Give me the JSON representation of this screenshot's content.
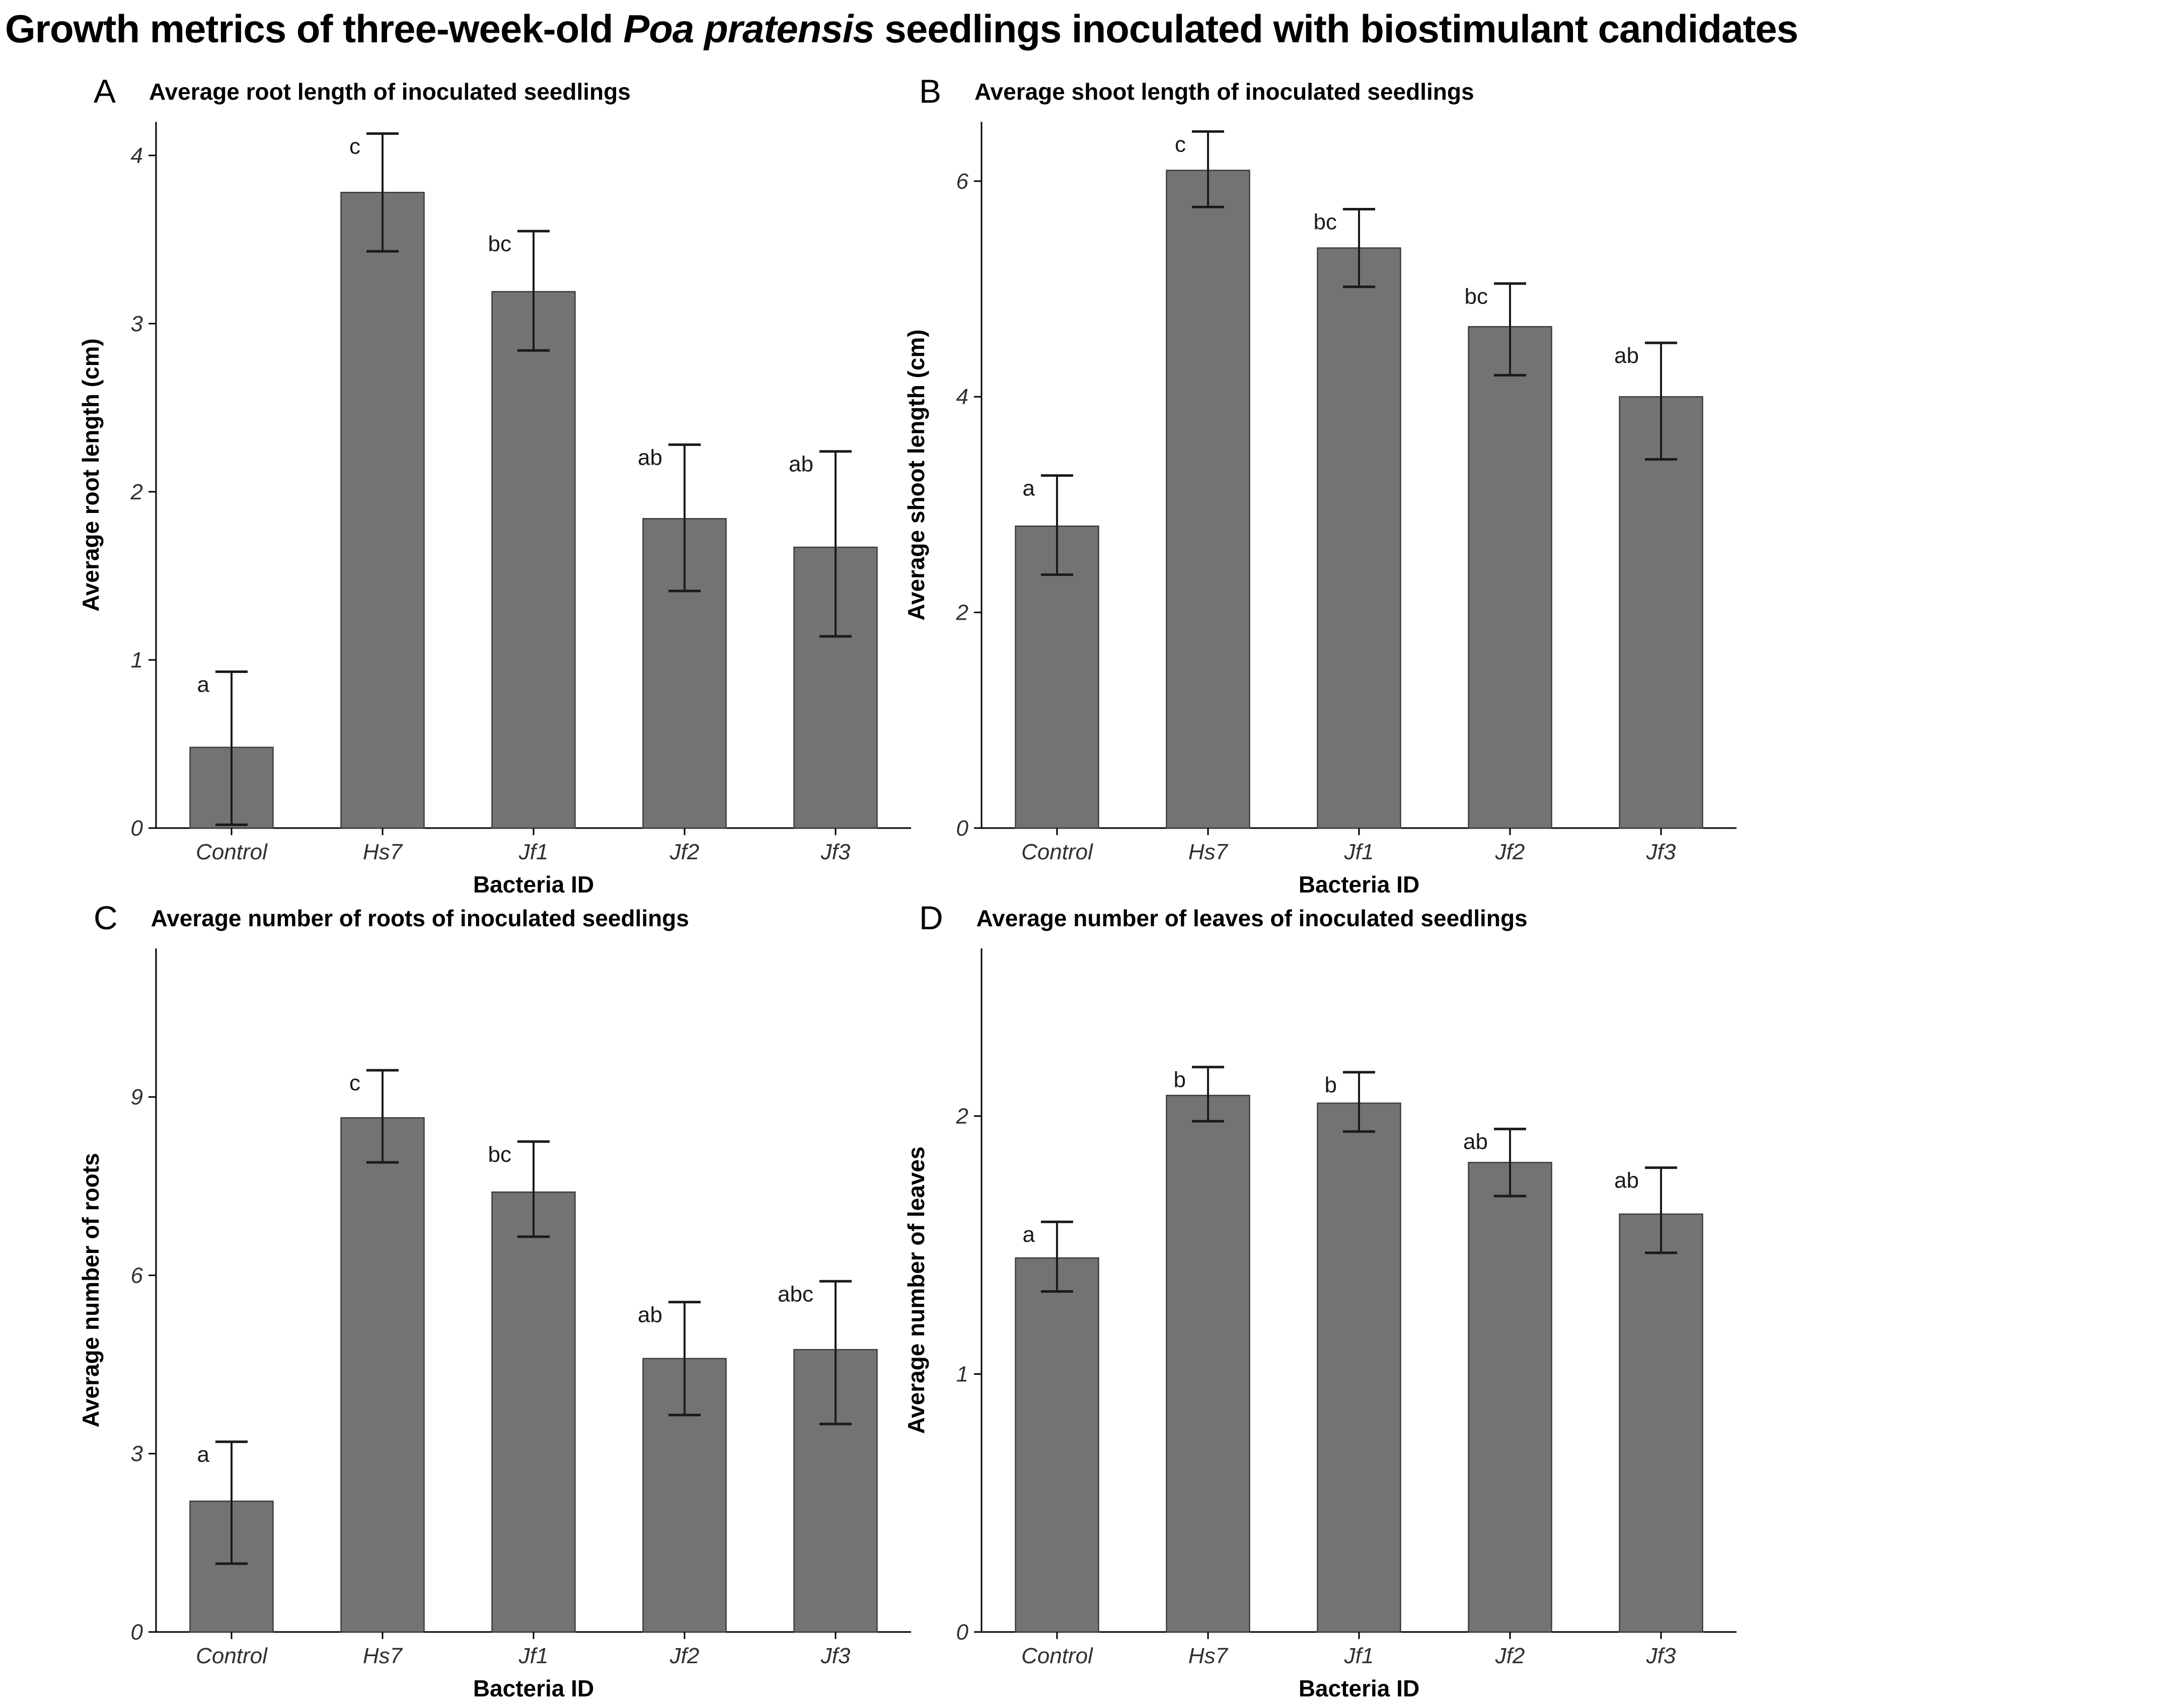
{
  "figure_title": {
    "text_prefix": "Growth metrics of three-week-old ",
    "species_italic": "Poa pratensis",
    "text_suffix": " seedlings inoculated with biostimulant candidates"
  },
  "colors": {
    "bar_fill": "#737373",
    "bar_stroke": "#3d3d3d",
    "error_bar": "#1a1a1a",
    "axis_line": "#000000",
    "tick_text": "#303030",
    "background": "#ffffff"
  },
  "chart_data": [
    {
      "type": "bar",
      "panel_letter": "A",
      "title": "Average root length of inoculated seedlings",
      "xlabel": "Bacteria ID",
      "ylabel": "Average root length (cm)",
      "categories": [
        "Control",
        "Hs7",
        "Jf1",
        "Jf2",
        "Jf3"
      ],
      "values": [
        0.48,
        3.78,
        3.19,
        1.84,
        1.67
      ],
      "error_low": [
        0.02,
        3.43,
        2.84,
        1.41,
        1.14
      ],
      "error_high": [
        0.93,
        4.13,
        3.55,
        2.28,
        2.24
      ],
      "sig_letters": [
        "a",
        "c",
        "bc",
        "ab",
        "ab"
      ],
      "ylim": [
        0,
        4.2
      ],
      "yticks": [
        0,
        1,
        2,
        3,
        4
      ],
      "grid": "off",
      "legend": "none"
    },
    {
      "type": "bar",
      "panel_letter": "B",
      "title": "Average shoot length of inoculated seedlings",
      "xlabel": "Bacteria ID",
      "ylabel": "Average shoot length (cm)",
      "categories": [
        "Control",
        "Hs7",
        "Jf1",
        "Jf2",
        "Jf3"
      ],
      "values": [
        2.8,
        6.1,
        5.38,
        4.65,
        4.0
      ],
      "error_low": [
        2.35,
        5.76,
        5.02,
        4.2,
        3.42
      ],
      "error_high": [
        3.27,
        6.46,
        5.74,
        5.05,
        4.5
      ],
      "sig_letters": [
        "a",
        "c",
        "bc",
        "bc",
        "ab"
      ],
      "ylim": [
        0,
        6.55
      ],
      "yticks": [
        0,
        2,
        4,
        6
      ],
      "grid": "off",
      "legend": "none"
    },
    {
      "type": "bar",
      "panel_letter": "C",
      "title": "Average number of roots of inoculated seedlings",
      "xlabel": "Bacteria ID",
      "ylabel": "Average number of roots",
      "categories": [
        "Control",
        "Hs7",
        "Jf1",
        "Jf2",
        "Jf3"
      ],
      "values": [
        2.2,
        8.65,
        7.4,
        4.6,
        4.75
      ],
      "error_low": [
        1.15,
        7.9,
        6.65,
        3.65,
        3.5
      ],
      "error_high": [
        3.2,
        9.45,
        8.25,
        5.55,
        5.9
      ],
      "sig_letters": [
        "a",
        "c",
        "bc",
        "ab",
        "abc"
      ],
      "ylim": [
        0,
        11.5
      ],
      "yticks": [
        0,
        3,
        6,
        9
      ],
      "grid": "off",
      "legend": "none"
    },
    {
      "type": "bar",
      "panel_letter": "D",
      "title": "Average number of leaves of inoculated seedlings",
      "xlabel": "Bacteria ID",
      "ylabel": "Average number of leaves",
      "categories": [
        "Control",
        "Hs7",
        "Jf1",
        "Jf2",
        "Jf3"
      ],
      "values": [
        1.45,
        2.08,
        2.05,
        1.82,
        1.62
      ],
      "error_low": [
        1.32,
        1.98,
        1.94,
        1.69,
        1.47
      ],
      "error_high": [
        1.59,
        2.19,
        2.17,
        1.95,
        1.8
      ],
      "sig_letters": [
        "a",
        "b",
        "b",
        "ab",
        "ab"
      ],
      "ylim": [
        0,
        2.65
      ],
      "yticks": [
        0,
        1,
        2
      ],
      "grid": "off",
      "legend": "none"
    }
  ]
}
